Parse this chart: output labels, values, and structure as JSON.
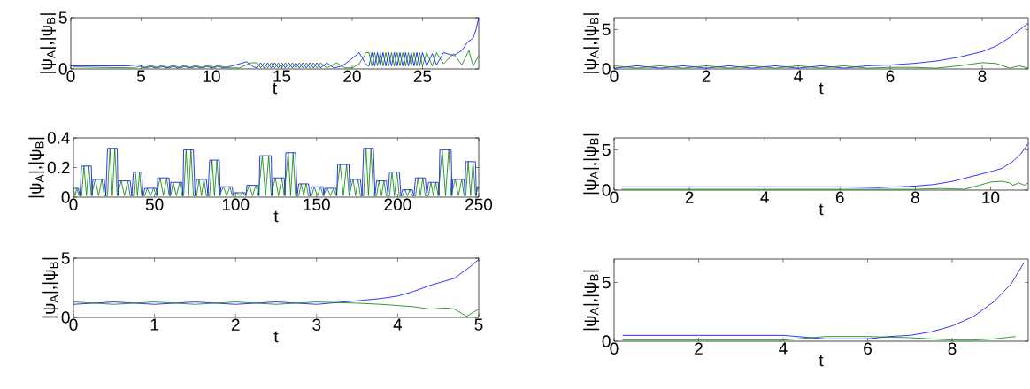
{
  "chart_data": [
    {
      "type": "line",
      "xlabel": "t",
      "ylabel": "|ψ$_{A}$|,|ψ$_{B}$|",
      "xlim": [
        0,
        29
      ],
      "ylim": [
        0,
        5
      ],
      "xticks": [
        0,
        5,
        10,
        15,
        20,
        25
      ],
      "yticks": [
        0,
        5
      ],
      "series": [
        {
          "color": "#0000ff",
          "x": [
            0,
            4,
            4.8,
            5.2,
            5.6,
            6,
            6.4,
            6.8,
            7.2,
            7.6,
            8,
            8.4,
            8.8,
            9.2,
            9.6,
            10,
            10.4,
            10.8,
            11.5,
            12.5,
            13,
            13.25,
            13.5,
            13.75,
            14,
            14.25,
            14.5,
            14.75,
            15,
            15.25,
            15.5,
            15.75,
            16,
            16.25,
            16.5,
            16.75,
            17,
            17.25,
            17.5,
            17.75,
            18.2,
            18.7,
            19.3,
            19.8,
            20.5,
            21,
            21.2,
            21.4,
            21.6,
            21.8,
            22,
            22.2,
            22.4,
            22.6,
            22.8,
            23,
            23.2,
            23.4,
            23.6,
            23.8,
            24,
            24.2,
            24.4,
            24.6,
            24.8,
            25,
            25.3,
            25.7,
            26,
            26.5,
            27.2,
            27.8,
            28.2,
            28.6,
            28.8,
            29
          ],
          "values": [
            0.3,
            0.3,
            0.4,
            0.1,
            0.3,
            0.1,
            0.3,
            0.1,
            0.3,
            0.1,
            0.3,
            0.1,
            0.3,
            0.1,
            0.3,
            0.1,
            0.3,
            0.1,
            0.3,
            0.7,
            0.2,
            0.1,
            0.6,
            0.1,
            0.6,
            0.1,
            0.6,
            0.1,
            0.6,
            0.1,
            0.6,
            0.1,
            0.6,
            0.1,
            0.6,
            0.1,
            0.6,
            0.1,
            0.6,
            0.1,
            0.6,
            0.1,
            0.3,
            0.8,
            1.6,
            0.4,
            0.3,
            1.6,
            0.3,
            1.6,
            0.3,
            1.6,
            0.3,
            1.6,
            0.3,
            1.6,
            0.3,
            1.6,
            0.3,
            1.6,
            0.3,
            1.6,
            0.3,
            1.6,
            0.3,
            1.6,
            0.3,
            1.5,
            0.4,
            1.6,
            1.3,
            1.8,
            2.6,
            3.0,
            3.8,
            5.0
          ]
        },
        {
          "color": "#008000",
          "x": [
            0.2,
            4.5,
            5,
            5.4,
            5.8,
            6.2,
            6.6,
            7,
            7.4,
            7.8,
            8.2,
            8.6,
            9,
            9.4,
            9.8,
            10.2,
            10.6,
            11.2,
            12,
            12.8,
            13.25,
            13.5,
            13.75,
            14,
            14.25,
            14.5,
            14.75,
            15,
            15.25,
            15.5,
            15.75,
            16,
            16.25,
            16.5,
            16.75,
            17,
            17.25,
            17.5,
            17.75,
            18.2,
            18.9,
            19.5,
            20,
            20.5,
            21,
            21.2,
            21.4,
            21.6,
            21.8,
            22,
            22.2,
            22.4,
            22.6,
            22.8,
            23,
            23.2,
            23.4,
            23.6,
            23.8,
            24,
            24.2,
            24.4,
            24.6,
            24.8,
            25,
            25.3,
            25.7,
            26,
            26.5,
            27.2,
            27.8,
            28.3,
            28.6,
            29
          ],
          "values": [
            0.2,
            0.1,
            0.3,
            0.1,
            0.3,
            0.1,
            0.3,
            0.1,
            0.3,
            0.1,
            0.3,
            0.1,
            0.3,
            0.1,
            0.3,
            0.1,
            0.3,
            0.1,
            0.1,
            0.6,
            0.6,
            0.1,
            0.6,
            0.1,
            0.6,
            0.1,
            0.6,
            0.1,
            0.6,
            0.1,
            0.6,
            0.1,
            0.6,
            0.1,
            0.6,
            0.1,
            0.6,
            0.1,
            0.6,
            0.1,
            0.6,
            0.1,
            0.1,
            0.5,
            1.6,
            1.6,
            0.3,
            1.6,
            0.3,
            1.6,
            0.3,
            1.6,
            0.3,
            1.6,
            0.3,
            1.6,
            0.3,
            1.6,
            0.3,
            1.6,
            0.3,
            1.6,
            0.3,
            1.6,
            0.3,
            1.6,
            0.3,
            1.6,
            0.5,
            1.5,
            0.4,
            1.8,
            0.3,
            1.3
          ]
        }
      ]
    },
    {
      "type": "line",
      "xlabel": "t",
      "ylabel": "|ψ$_{A}$|,|ψ$_{B}$|",
      "xlim": [
        0,
        250
      ],
      "ylim": [
        0,
        0.4
      ],
      "xticks": [
        0,
        50,
        100,
        150,
        200,
        250
      ],
      "yticks": [
        0,
        0.2,
        0.4
      ],
      "series": [
        {
          "color": "#0000ff",
          "x": [
            0,
            3,
            4,
            5,
            11,
            11.5,
            12,
            19,
            20,
            21,
            27,
            27.5,
            28,
            35,
            36,
            37,
            42,
            43,
            44,
            51,
            51.5,
            52,
            59,
            59.5,
            60,
            67,
            67.5,
            68,
            74,
            75,
            76,
            82,
            83,
            84,
            90,
            90.5,
            91,
            98,
            98.5,
            99,
            106,
            106.5,
            107,
            114,
            114.5,
            115,
            122,
            122.5,
            123,
            130,
            130.5,
            131,
            137,
            138,
            139,
            145,
            146,
            147,
            154,
            154.5,
            155,
            162,
            162.5,
            163,
            170,
            170.5,
            171,
            177,
            178,
            179,
            185,
            186,
            187,
            193,
            194,
            195,
            201,
            202,
            203,
            209,
            210,
            211,
            217,
            218,
            219,
            225,
            225.5,
            226,
            233,
            233.5,
            234,
            241,
            241.5,
            242,
            248,
            248.5,
            249,
            250
          ],
          "values": [
            0.06,
            0.06,
            0.01,
            0.21,
            0.21,
            0.01,
            0.12,
            0.12,
            0.01,
            0.33,
            0.33,
            0.01,
            0.11,
            0.11,
            0.01,
            0.17,
            0.17,
            0.01,
            0.06,
            0.06,
            0.01,
            0.13,
            0.13,
            0.01,
            0.1,
            0.1,
            0.01,
            0.32,
            0.32,
            0.01,
            0.12,
            0.12,
            0.01,
            0.25,
            0.25,
            0.01,
            0.07,
            0.07,
            0.01,
            0.03,
            0.03,
            0.01,
            0.08,
            0.08,
            0.01,
            0.28,
            0.28,
            0.01,
            0.13,
            0.13,
            0.01,
            0.3,
            0.3,
            0.01,
            0.09,
            0.09,
            0.01,
            0.07,
            0.07,
            0.01,
            0.06,
            0.06,
            0.01,
            0.22,
            0.22,
            0.01,
            0.12,
            0.12,
            0.01,
            0.33,
            0.33,
            0.01,
            0.11,
            0.11,
            0.01,
            0.17,
            0.17,
            0.01,
            0.05,
            0.05,
            0.01,
            0.13,
            0.13,
            0.01,
            0.1,
            0.1,
            0.01,
            0.32,
            0.32,
            0.01,
            0.12,
            0.12,
            0.01,
            0.24,
            0.24,
            0.01,
            0.07,
            0.07
          ]
        },
        {
          "color": "#008000",
          "x": [
            0,
            1,
            2,
            3.5,
            5,
            6.5,
            8,
            9.5,
            11,
            13.5,
            15.5,
            17.5,
            19,
            21,
            22.5,
            24,
            25.5,
            27,
            29.5,
            31.5,
            33.5,
            35,
            37,
            38.2,
            39.5,
            40.8,
            42,
            44,
            45.5,
            47.5,
            49.5,
            51,
            53.5,
            55.5,
            57.5,
            59,
            60,
            61.5,
            63.5,
            65.5,
            67,
            68,
            69.5,
            71,
            72.5,
            74,
            76,
            77.5,
            79,
            80.5,
            82,
            84,
            85.5,
            87,
            88.5,
            90,
            92.5,
            94.5,
            96.5,
            98,
            100.5,
            102.5,
            104.5,
            106,
            108.5,
            110.5,
            112.5,
            114,
            116.5,
            118.5,
            120.5,
            122,
            124.5,
            126.5,
            128.5,
            130,
            132.5,
            134,
            135.5,
            137,
            139,
            140.5,
            142,
            143.5,
            145,
            147,
            148.5,
            150.5,
            152.5,
            154,
            156.5,
            158.5,
            160.5,
            162,
            164.5,
            166.5,
            168.5,
            170,
            172.5,
            174,
            175.5,
            177,
            179,
            180.5,
            182,
            183.5,
            185,
            187,
            188.5,
            190,
            191.5,
            193,
            195,
            196.5,
            198,
            199.5,
            201,
            203,
            204.5,
            206,
            207.5,
            209,
            211,
            212.5,
            214,
            215.5,
            217,
            219,
            220.5,
            222,
            223.5,
            225,
            227.5,
            229.5,
            231.5,
            233,
            235.5,
            237.5,
            239.5,
            241,
            242,
            243.5,
            245,
            246.5,
            248,
            249.5,
            250
          ],
          "values": [
            0.06,
            0.01,
            0.06,
            0.01,
            0.01,
            0.21,
            0.01,
            0.21,
            0.01,
            0.12,
            0.01,
            0.12,
            0.01,
            0.01,
            0.33,
            0.01,
            0.33,
            0.01,
            0.11,
            0.01,
            0.11,
            0.01,
            0.01,
            0.17,
            0.01,
            0.17,
            0.01,
            0.01,
            0.06,
            0.01,
            0.06,
            0.01,
            0.13,
            0.01,
            0.13,
            0.01,
            0.01,
            0.1,
            0.01,
            0.1,
            0.01,
            0.01,
            0.32,
            0.01,
            0.32,
            0.01,
            0.01,
            0.12,
            0.01,
            0.12,
            0.01,
            0.01,
            0.25,
            0.01,
            0.25,
            0.01,
            0.07,
            0.01,
            0.07,
            0.01,
            0.03,
            0.01,
            0.03,
            0.01,
            0.08,
            0.01,
            0.08,
            0.01,
            0.28,
            0.01,
            0.28,
            0.01,
            0.13,
            0.01,
            0.13,
            0.01,
            0.3,
            0.01,
            0.3,
            0.01,
            0.01,
            0.09,
            0.01,
            0.09,
            0.01,
            0.01,
            0.07,
            0.01,
            0.07,
            0.01,
            0.06,
            0.01,
            0.06,
            0.01,
            0.22,
            0.01,
            0.22,
            0.01,
            0.12,
            0.01,
            0.12,
            0.01,
            0.01,
            0.33,
            0.01,
            0.33,
            0.01,
            0.01,
            0.11,
            0.01,
            0.11,
            0.01,
            0.01,
            0.17,
            0.01,
            0.17,
            0.01,
            0.01,
            0.05,
            0.01,
            0.05,
            0.01,
            0.01,
            0.13,
            0.01,
            0.13,
            0.01,
            0.01,
            0.1,
            0.01,
            0.1,
            0.01,
            0.32,
            0.01,
            0.32,
            0.01,
            0.12,
            0.01,
            0.12,
            0.01,
            0.01,
            0.24,
            0.01,
            0.24,
            0.01,
            0.07,
            0.05
          ]
        }
      ]
    },
    {
      "type": "line",
      "xlabel": "t",
      "ylabel": "|ψ$_{A}$|,|ψ$_{B}$|",
      "xlim": [
        0,
        5
      ],
      "ylim": [
        0,
        5
      ],
      "xticks": [
        0,
        1,
        2,
        3,
        4,
        5
      ],
      "yticks": [
        0,
        5
      ],
      "series": [
        {
          "color": "#0000ff",
          "x": [
            0,
            0.5,
            1,
            1.5,
            2,
            2.5,
            3,
            3.5,
            3.8,
            4,
            4.2,
            4.4,
            4.6,
            4.7,
            4.8,
            4.9,
            5
          ],
          "values": [
            1.1,
            1.3,
            1.1,
            1.3,
            1.1,
            1.3,
            1.1,
            1.4,
            1.6,
            1.8,
            2.2,
            2.7,
            3.1,
            3.3,
            3.8,
            4.3,
            4.9
          ]
        },
        {
          "color": "#008000",
          "x": [
            0,
            0.5,
            1,
            1.5,
            2,
            2.5,
            3,
            3.5,
            3.8,
            4,
            4.2,
            4.4,
            4.6,
            4.7,
            4.8,
            4.85,
            4.9,
            5
          ],
          "values": [
            1.3,
            1.1,
            1.3,
            1.1,
            1.3,
            1.1,
            1.3,
            1.2,
            1.1,
            1.0,
            0.9,
            0.7,
            0.8,
            0.7,
            0.3,
            0.1,
            0.3,
            0.7
          ]
        }
      ]
    },
    {
      "type": "line",
      "xlabel": "t",
      "ylabel": "|ψ$_{A}$|,|ψ$_{B}$|",
      "xlim": [
        0,
        9
      ],
      "ylim": [
        0,
        6.5
      ],
      "xticks": [
        0,
        2,
        4,
        6,
        8
      ],
      "yticks": [
        0,
        5
      ],
      "series": [
        {
          "color": "#0000ff",
          "x": [
            0,
            0.5,
            1,
            1.5,
            2,
            2.5,
            3,
            3.5,
            4,
            4.5,
            5,
            5.5,
            6,
            6.5,
            7,
            7.5,
            8,
            8.3,
            8.6,
            9
          ],
          "values": [
            0.1,
            0.4,
            0.1,
            0.4,
            0.1,
            0.4,
            0.1,
            0.4,
            0.1,
            0.4,
            0.1,
            0.4,
            0.5,
            0.7,
            1.0,
            1.5,
            2.2,
            2.9,
            4.0,
            5.8
          ]
        },
        {
          "color": "#008000",
          "x": [
            0,
            0.5,
            1,
            1.5,
            2,
            2.5,
            3,
            3.5,
            4,
            4.5,
            5,
            5.5,
            6,
            6.5,
            7,
            7.5,
            8,
            8.3,
            8.6,
            8.8,
            9
          ],
          "values": [
            0.4,
            0.1,
            0.4,
            0.1,
            0.4,
            0.1,
            0.4,
            0.1,
            0.4,
            0.1,
            0.4,
            0.1,
            0.2,
            0.2,
            0.1,
            0.4,
            0.8,
            0.7,
            0.1,
            0.4,
            0.1
          ]
        }
      ]
    },
    {
      "type": "line",
      "xlabel": "t",
      "ylabel": "|ψ$_{A}$|,|ψ$_{B}$|",
      "xlim": [
        0,
        11
      ],
      "ylim": [
        0,
        6.5
      ],
      "xticks": [
        0,
        2,
        4,
        6,
        8,
        10
      ],
      "yticks": [
        0,
        5
      ],
      "series": [
        {
          "color": "#0000ff",
          "x": [
            0.2,
            6,
            7,
            8,
            8.5,
            9,
            9.5,
            10,
            10.3,
            10.6,
            10.8,
            11
          ],
          "values": [
            0.4,
            0.4,
            0.3,
            0.5,
            0.7,
            1.1,
            1.7,
            2.3,
            2.7,
            3.6,
            4.5,
            5.8
          ]
        },
        {
          "color": "#008000",
          "x": [
            0.2,
            6.5,
            7,
            8,
            8.7,
            9.3,
            9.7,
            10,
            10.3,
            10.5,
            10.6,
            10.75,
            10.9,
            11
          ],
          "values": [
            0.1,
            0.1,
            0.1,
            0.1,
            0.2,
            0.1,
            0.6,
            1.0,
            1.1,
            0.9,
            0.6,
            0.9,
            0.6,
            0.9
          ]
        }
      ]
    },
    {
      "type": "line",
      "xlabel": "t",
      "ylabel": "|ψ$_{A}$|,|ψ$_{B}$|",
      "xlim": [
        0,
        9.8
      ],
      "ylim": [
        0,
        7
      ],
      "xticks": [
        0,
        2,
        4,
        6,
        8
      ],
      "yticks": [
        0,
        5
      ],
      "series": [
        {
          "color": "#0000ff",
          "x": [
            0.2,
            4,
            5,
            6,
            6.5,
            7,
            7.5,
            8,
            8.5,
            9,
            9.4,
            9.7
          ],
          "values": [
            0.5,
            0.5,
            0.2,
            0.2,
            0.4,
            0.5,
            0.8,
            1.3,
            2.1,
            3.4,
            4.9,
            6.7
          ]
        },
        {
          "color": "#008000",
          "x": [
            0.2,
            4,
            5,
            6,
            7,
            7.5,
            8,
            8.5,
            9,
            9.5
          ],
          "values": [
            0.1,
            0.1,
            0.4,
            0.4,
            0.3,
            0.2,
            0.1,
            0.1,
            0.2,
            0.4
          ]
        }
      ]
    }
  ]
}
